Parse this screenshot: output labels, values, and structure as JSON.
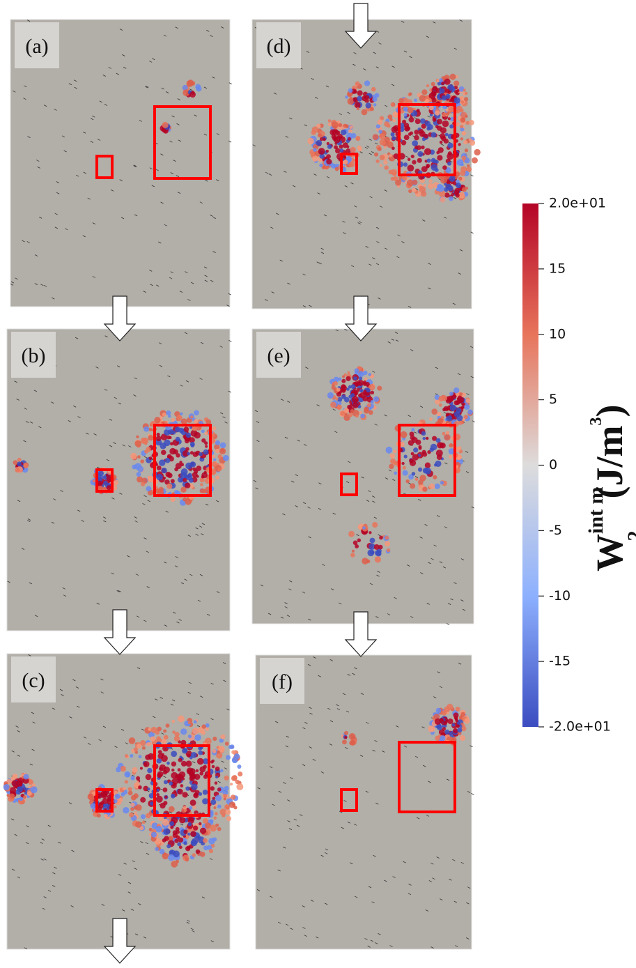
{
  "panels": [
    {
      "label": "(a)"
    },
    {
      "label": "(b)"
    },
    {
      "label": "(c)"
    },
    {
      "label": "(d)"
    },
    {
      "label": "(e)"
    },
    {
      "label": "(f)"
    }
  ],
  "colorbar": {
    "range": [
      -20,
      20
    ],
    "ticks": [
      {
        "value": 20,
        "label": "2.0e+01"
      },
      15,
      10,
      5,
      0,
      -5,
      -10,
      -15,
      {
        "value": -20,
        "label": "-2.0e+01"
      }
    ],
    "title": {
      "symbol": "W",
      "subscript": "2",
      "superscript": "int m",
      "unit": "(J/m",
      "unit_power": "3",
      "close": ")"
    }
  }
}
